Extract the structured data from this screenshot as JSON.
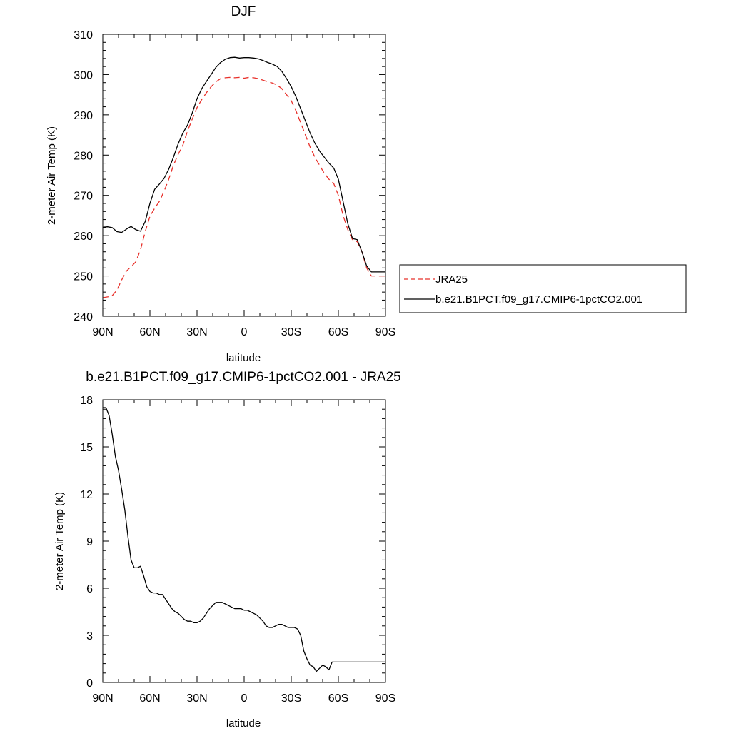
{
  "colors": {
    "jra25": "#e8302a",
    "model": "#000000",
    "background": "#ffffff"
  },
  "chart_data": [
    {
      "type": "line",
      "title": "DJF",
      "xlabel": "latitude",
      "ylabel": "2-meter Air Temp (K)",
      "xlim": [
        90,
        -90
      ],
      "ylim": [
        240,
        310
      ],
      "xticks": [
        90,
        60,
        30,
        0,
        -30,
        -60,
        -90
      ],
      "xtick_labels": [
        "90N",
        "60N",
        "30N",
        "0",
        "30S",
        "60S",
        "90S"
      ],
      "yticks": [
        240,
        250,
        260,
        270,
        280,
        290,
        300,
        310
      ],
      "ytick_labels": [
        "240",
        "250",
        "260",
        "270",
        "280",
        "290",
        "300",
        "310"
      ],
      "legend": {
        "placement": "right",
        "entries": [
          "JRA25",
          "b.e21.B1PCT.f09_g17.CMIP6-1pctCO2.001"
        ]
      },
      "series": [
        {
          "name": "JRA25",
          "style": "dashed",
          "color": "#e8302a",
          "x": [
            90,
            87,
            84,
            81,
            78,
            75,
            72,
            69,
            66,
            63,
            60,
            57,
            54,
            51,
            48,
            45,
            42,
            39,
            36,
            33,
            30,
            27,
            24,
            21,
            18,
            15,
            12,
            9,
            6,
            3,
            0,
            -3,
            -6,
            -9,
            -12,
            -15,
            -18,
            -21,
            -24,
            -27,
            -30,
            -33,
            -36,
            -39,
            -42,
            -45,
            -48,
            -51,
            -54,
            -57,
            -60,
            -63,
            -66,
            -69,
            -72,
            -75,
            -78,
            -81,
            -84,
            -87,
            -90
          ],
          "y": [
            244.6,
            244.8,
            245.1,
            246.5,
            249.0,
            251.2,
            252.3,
            253.5,
            256.5,
            261.0,
            264.8,
            266.8,
            268.5,
            271.0,
            274.0,
            277.5,
            280.2,
            282.5,
            286.0,
            289.0,
            291.8,
            293.8,
            295.5,
            297.0,
            298.2,
            299.0,
            299.2,
            299.3,
            299.2,
            299.3,
            299.1,
            299.3,
            299.2,
            299.0,
            298.6,
            298.2,
            297.9,
            297.4,
            296.5,
            295.0,
            293.5,
            291.0,
            288.0,
            285.0,
            282.0,
            279.5,
            277.5,
            275.5,
            274.0,
            273.0,
            270.0,
            265.0,
            261.5,
            259.0,
            258.5,
            256.0,
            252.0,
            250.0,
            250.0,
            250.0,
            250.0
          ]
        },
        {
          "name": "b.e21.B1PCT.f09_g17.CMIP6-1pctCO2.001",
          "style": "solid",
          "color": "#000000",
          "x": [
            90,
            87,
            84,
            81,
            78,
            75,
            72,
            69,
            66,
            63,
            60,
            57,
            54,
            51,
            48,
            45,
            42,
            39,
            36,
            33,
            30,
            27,
            24,
            21,
            18,
            15,
            12,
            9,
            6,
            3,
            0,
            -3,
            -6,
            -9,
            -12,
            -15,
            -18,
            -21,
            -24,
            -27,
            -30,
            -33,
            -36,
            -39,
            -42,
            -45,
            -48,
            -51,
            -54,
            -57,
            -60,
            -63,
            -66,
            -69,
            -72,
            -75,
            -78,
            -81,
            -84,
            -87,
            -90
          ],
          "y": [
            262.1,
            262.2,
            262.0,
            261.0,
            260.8,
            261.6,
            262.3,
            261.5,
            261.1,
            263.5,
            268.0,
            271.5,
            272.8,
            274.2,
            276.5,
            279.5,
            282.8,
            285.5,
            287.5,
            290.5,
            294.0,
            296.5,
            298.3,
            300.0,
            301.8,
            303.0,
            303.8,
            304.2,
            304.3,
            304.1,
            304.2,
            304.2,
            304.1,
            303.9,
            303.5,
            303.0,
            302.6,
            302.0,
            300.8,
            299.0,
            297.0,
            294.5,
            291.5,
            288.5,
            285.5,
            283.0,
            281.0,
            279.5,
            278.0,
            276.8,
            274.0,
            268.5,
            263.0,
            259.3,
            259.0,
            256.0,
            252.5,
            251.0,
            251.0,
            251.0,
            251.0
          ]
        }
      ]
    },
    {
      "type": "line",
      "title": "b.e21.B1PCT.f09_g17.CMIP6-1pctCO2.001 - JRA25",
      "xlabel": "latitude",
      "ylabel": "2-meter Air Temp (K)",
      "xlim": [
        90,
        -90
      ],
      "ylim": [
        0,
        18
      ],
      "xticks": [
        90,
        60,
        30,
        0,
        -30,
        -60,
        -90
      ],
      "xtick_labels": [
        "90N",
        "60N",
        "30N",
        "0",
        "30S",
        "60S",
        "90S"
      ],
      "yticks": [
        0,
        3,
        6,
        9,
        12,
        15,
        18
      ],
      "ytick_labels": [
        "0",
        "3",
        "6",
        "9",
        "12",
        "15",
        "18"
      ],
      "series": [
        {
          "name": "b.e21.B1PCT.f09_g17.CMIP6-1pctCO2.001 - JRA25",
          "style": "solid",
          "color": "#000000",
          "x": [
            90,
            88,
            86,
            84,
            82,
            80,
            78,
            76,
            74,
            72,
            70,
            68,
            66,
            64,
            62,
            60,
            58,
            56,
            54,
            52,
            50,
            48,
            46,
            44,
            42,
            40,
            38,
            36,
            34,
            32,
            30,
            28,
            26,
            24,
            22,
            20,
            18,
            16,
            14,
            12,
            10,
            8,
            6,
            4,
            2,
            0,
            -2,
            -4,
            -6,
            -8,
            -10,
            -12,
            -14,
            -16,
            -18,
            -20,
            -22,
            -24,
            -26,
            -28,
            -30,
            -32,
            -34,
            -36,
            -38,
            -40,
            -42,
            -44,
            -46,
            -48,
            -50,
            -52,
            -54,
            -56,
            -58,
            -60,
            -62,
            -64,
            -66,
            -68,
            -70,
            -72,
            -74,
            -76,
            -78,
            -80,
            -82,
            -84,
            -86,
            -88,
            -90
          ],
          "y": [
            17.5,
            17.5,
            17.0,
            15.8,
            14.4,
            13.5,
            12.3,
            11.0,
            9.3,
            7.8,
            7.3,
            7.3,
            7.4,
            6.8,
            6.1,
            5.8,
            5.7,
            5.7,
            5.6,
            5.6,
            5.3,
            5.0,
            4.7,
            4.5,
            4.4,
            4.2,
            4.0,
            3.9,
            3.9,
            3.8,
            3.8,
            3.9,
            4.1,
            4.4,
            4.7,
            4.9,
            5.1,
            5.1,
            5.1,
            5.0,
            4.9,
            4.8,
            4.7,
            4.7,
            4.7,
            4.6,
            4.6,
            4.5,
            4.4,
            4.3,
            4.1,
            3.9,
            3.6,
            3.5,
            3.5,
            3.6,
            3.7,
            3.7,
            3.6,
            3.5,
            3.5,
            3.5,
            3.4,
            3.0,
            2.0,
            1.5,
            1.1,
            1.0,
            0.7,
            0.9,
            1.1,
            1.0,
            0.8,
            1.3,
            1.3,
            1.3,
            1.3,
            1.3,
            1.3,
            1.3,
            1.3,
            1.3,
            1.3,
            1.3,
            1.3,
            1.3,
            1.3,
            1.3,
            1.3,
            1.3,
            1.3
          ]
        }
      ]
    }
  ]
}
